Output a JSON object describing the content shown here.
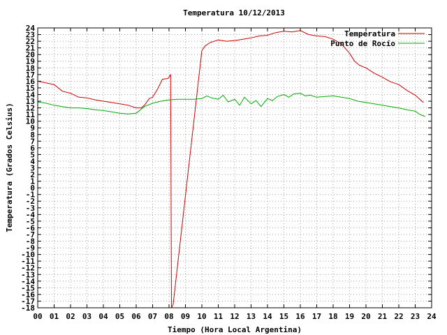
{
  "chart_data": {
    "type": "line",
    "title": "Temperatura 10/12/2013",
    "xlabel": "Tiempo (Hora Local Argentina)",
    "ylabel": "Temperatura (Grados Celsius)",
    "xlim": [
      0,
      24
    ],
    "ylim": [
      -18,
      24
    ],
    "x_ticks": [
      "00",
      "01",
      "02",
      "03",
      "04",
      "05",
      "06",
      "07",
      "08",
      "09",
      "10",
      "11",
      "12",
      "13",
      "14",
      "15",
      "16",
      "17",
      "18",
      "19",
      "20",
      "21",
      "22",
      "23",
      "24"
    ],
    "y_ticks": [
      24,
      23,
      22,
      21,
      20,
      19,
      18,
      17,
      16,
      15,
      14,
      13,
      12,
      11,
      10,
      9,
      8,
      7,
      6,
      5,
      4,
      3,
      2,
      1,
      0,
      -1,
      -2,
      -3,
      -4,
      -5,
      -6,
      -7,
      -8,
      -9,
      -10,
      -11,
      -12,
      -13,
      -14,
      -15,
      -16,
      -17,
      -18
    ],
    "grid": true,
    "legend_position": "top-right",
    "series": [
      {
        "name": "Temperatura",
        "color": "#cc0000",
        "x": [
          0.0,
          0.4,
          1.0,
          1.5,
          2.0,
          2.5,
          3.0,
          3.5,
          4.0,
          4.5,
          5.0,
          5.5,
          6.0,
          6.3,
          6.5,
          6.8,
          7.0,
          7.3,
          7.6,
          7.9,
          8.0,
          8.1,
          8.15,
          8.25,
          10.0,
          10.2,
          10.5,
          11.0,
          11.5,
          12.0,
          12.5,
          13.0,
          13.5,
          14.0,
          14.5,
          15.0,
          15.5,
          16.0,
          16.5,
          17.0,
          17.5,
          18.0,
          18.5,
          19.0,
          19.3,
          19.6,
          20.0,
          20.5,
          21.0,
          21.5,
          22.0,
          22.5,
          23.0,
          23.5
        ],
        "y": [
          16.0,
          15.8,
          15.5,
          14.5,
          14.2,
          13.6,
          13.5,
          13.2,
          13.0,
          12.8,
          12.6,
          12.4,
          12.0,
          12.0,
          12.4,
          13.4,
          13.6,
          14.8,
          16.3,
          16.4,
          16.6,
          17.0,
          -18.0,
          -17.5,
          20.6,
          21.3,
          21.8,
          22.2,
          22.0,
          22.1,
          22.3,
          22.5,
          22.8,
          22.9,
          23.3,
          23.5,
          23.4,
          23.6,
          23.0,
          22.8,
          22.7,
          22.3,
          21.6,
          20.2,
          19.0,
          18.4,
          18.0,
          17.2,
          16.6,
          15.9,
          15.5,
          14.6,
          13.9,
          12.8
        ]
      },
      {
        "name": "Punto de Rocío",
        "color": "#00aa00",
        "x": [
          0.0,
          0.5,
          1.0,
          1.5,
          2.0,
          2.5,
          3.0,
          3.5,
          4.0,
          4.5,
          5.0,
          5.5,
          6.0,
          6.5,
          7.0,
          7.5,
          8.0,
          8.5,
          9.0,
          9.5,
          10.0,
          10.3,
          10.6,
          11.0,
          11.3,
          11.6,
          12.0,
          12.3,
          12.6,
          13.0,
          13.3,
          13.6,
          14.0,
          14.3,
          14.6,
          15.0,
          15.3,
          15.6,
          16.0,
          16.3,
          16.6,
          17.0,
          17.5,
          18.0,
          18.5,
          19.0,
          19.5,
          20.0,
          20.5,
          21.0,
          21.5,
          22.0,
          22.5,
          23.0,
          23.3,
          23.6
        ],
        "y": [
          12.9,
          12.7,
          12.4,
          12.2,
          12.0,
          12.0,
          11.9,
          11.7,
          11.6,
          11.4,
          11.2,
          11.1,
          11.2,
          12.2,
          12.7,
          13.0,
          13.2,
          13.3,
          13.3,
          13.3,
          13.4,
          13.8,
          13.5,
          13.3,
          13.9,
          12.9,
          13.3,
          12.4,
          13.6,
          12.6,
          13.1,
          12.2,
          13.4,
          13.1,
          13.7,
          14.0,
          13.6,
          14.1,
          14.2,
          13.8,
          13.9,
          13.6,
          13.7,
          13.8,
          13.6,
          13.4,
          13.0,
          12.8,
          12.6,
          12.4,
          12.2,
          12.0,
          11.7,
          11.5,
          11.0,
          10.7
        ]
      }
    ]
  }
}
